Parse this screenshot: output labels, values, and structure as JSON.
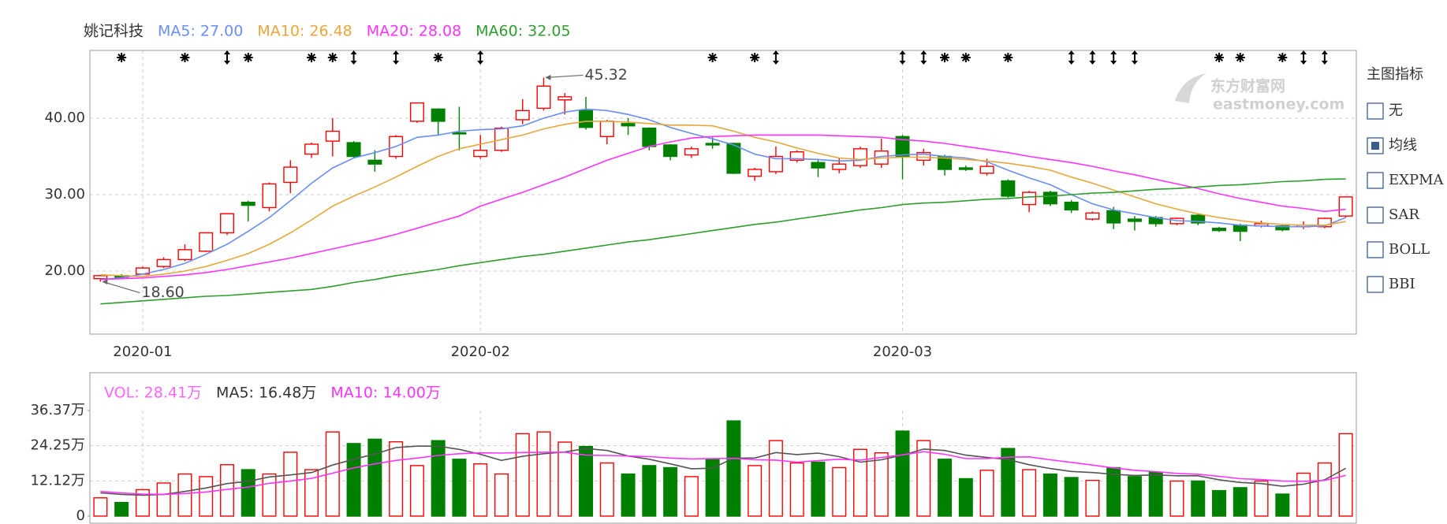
{
  "chart_data": [
    {
      "type": "candlestick",
      "title": "姚记科技",
      "categories": [
        null,
        null,
        "2020-01",
        null,
        null,
        null,
        null,
        null,
        null,
        null,
        null,
        null,
        null,
        null,
        null,
        null,
        null,
        null,
        "2020-02",
        null,
        null,
        null,
        null,
        null,
        null,
        null,
        null,
        null,
        null,
        null,
        null,
        null,
        null,
        null,
        null,
        null,
        null,
        null,
        "2020-03",
        null,
        null,
        null,
        null,
        null,
        null,
        null,
        null,
        null,
        null,
        null,
        null,
        null,
        null,
        null,
        null,
        null,
        null,
        null,
        null,
        null
      ],
      "open": [
        19.0,
        19.4,
        19.6,
        20.6,
        21.5,
        22.6,
        25.0,
        29.0,
        28.3,
        31.6,
        35.3,
        37.0,
        36.8,
        34.5,
        35.0,
        39.6,
        41.2,
        38.1,
        35.0,
        35.8,
        39.8,
        41.3,
        42.4,
        41.0,
        37.6,
        39.3,
        38.7,
        36.5,
        35.2,
        36.7,
        36.7,
        32.4,
        33.0,
        34.5,
        34.2,
        33.3,
        33.8,
        34.0,
        37.6,
        34.5,
        35.0,
        33.5,
        32.8,
        31.8,
        28.7,
        30.3,
        29.0,
        26.8,
        27.9,
        26.8,
        27.0,
        26.2,
        27.3,
        25.6,
        26.0,
        25.9,
        25.9,
        25.8,
        25.8,
        27.2
      ],
      "high": [
        19.5,
        19.6,
        20.6,
        21.8,
        23.5,
        25.1,
        27.6,
        29.2,
        31.6,
        34.5,
        36.8,
        40.0,
        37.0,
        35.8,
        37.8,
        42.0,
        41.3,
        41.5,
        37.8,
        38.9,
        42.5,
        45.32,
        43.3,
        42.8,
        39.8,
        40.0,
        38.8,
        36.6,
        36.3,
        37.5,
        36.8,
        33.5,
        36.3,
        35.8,
        34.5,
        34.8,
        36.3,
        37.3,
        37.8,
        36.0,
        35.2,
        33.8,
        34.7,
        32.0,
        30.5,
        30.5,
        29.3,
        27.8,
        28.4,
        27.2,
        27.2,
        27.0,
        27.5,
        25.8,
        26.2,
        26.6,
        26.0,
        26.5,
        27.0,
        29.8
      ],
      "low": [
        18.6,
        19.1,
        19.5,
        20.4,
        21.3,
        22.5,
        24.7,
        26.5,
        27.8,
        30.2,
        34.8,
        35.0,
        34.8,
        33.0,
        34.7,
        39.4,
        37.7,
        35.8,
        34.7,
        35.6,
        39.2,
        41.0,
        40.5,
        38.5,
        36.6,
        37.8,
        35.8,
        34.5,
        34.8,
        36.0,
        32.7,
        31.8,
        32.7,
        34.2,
        32.3,
        32.8,
        33.5,
        33.5,
        32.0,
        33.8,
        32.5,
        33.1,
        32.5,
        29.6,
        27.7,
        28.5,
        27.6,
        26.6,
        25.5,
        25.3,
        25.8,
        26.0,
        26.0,
        25.1,
        23.9,
        25.7,
        25.2,
        25.5,
        25.6,
        27.0
      ],
      "close": [
        19.4,
        19.2,
        20.4,
        21.5,
        22.8,
        25.0,
        27.5,
        28.6,
        31.4,
        33.6,
        36.6,
        38.3,
        35.0,
        34.0,
        37.6,
        42.0,
        39.6,
        38.0,
        35.8,
        38.7,
        41.0,
        44.2,
        42.8,
        38.8,
        39.6,
        39.0,
        36.3,
        35.0,
        36.0,
        36.5,
        32.8,
        33.3,
        35.0,
        35.6,
        33.5,
        34.0,
        36.0,
        35.7,
        35.0,
        35.5,
        33.3,
        33.3,
        33.7,
        29.8,
        30.3,
        28.8,
        28.0,
        27.6,
        26.3,
        26.5,
        26.2,
        26.9,
        26.3,
        25.3,
        25.2,
        26.2,
        25.4,
        26.0,
        26.9,
        29.7
      ],
      "up_color": "#ff0000",
      "down_color": "#008000",
      "ylim": [
        11.75,
        48.87
      ],
      "yticks": [
        {
          "value": 20,
          "label": "20.00"
        },
        {
          "value": 30,
          "label": "30.00"
        },
        {
          "value": 40,
          "label": "40.00"
        }
      ],
      "grid": true,
      "series": [
        {
          "label": "MA5: 27.00",
          "color": "#6a8ef5",
          "values": [
            18.9,
            19.1,
            19.6,
            20.2,
            21.0,
            22.2,
            23.5,
            25.2,
            27.0,
            29.2,
            31.5,
            33.5,
            34.8,
            35.5,
            36.3,
            37.5,
            37.8,
            38.3,
            38.5,
            38.6,
            39.0,
            40.0,
            40.8,
            41.2,
            41.0,
            40.5,
            39.8,
            38.8,
            38.0,
            37.3,
            36.5,
            35.3,
            34.7,
            34.7,
            34.6,
            34.4,
            34.5,
            35.0,
            35.2,
            35.3,
            35.0,
            34.8,
            34.3,
            33.2,
            32.2,
            31.3,
            30.0,
            28.8,
            28.0,
            27.5,
            27.0,
            26.6,
            26.5,
            26.3,
            26.0,
            25.9,
            25.8,
            25.8,
            25.9,
            27.0
          ]
        },
        {
          "label": "MA10: 26.48",
          "color": "#e8a73a",
          "values": [
            19.5,
            19.4,
            19.3,
            19.6,
            20.0,
            20.6,
            21.4,
            22.3,
            23.5,
            25.0,
            26.7,
            28.5,
            29.8,
            31.0,
            32.3,
            33.7,
            35.0,
            36.0,
            36.6,
            37.2,
            37.8,
            38.6,
            39.2,
            39.6,
            39.6,
            39.5,
            39.3,
            39.1,
            39.1,
            39.0,
            38.3,
            37.5,
            36.9,
            36.1,
            35.4,
            34.8,
            34.6,
            34.8,
            34.9,
            34.9,
            34.8,
            34.6,
            34.4,
            34.1,
            33.7,
            33.2,
            32.3,
            31.5,
            30.6,
            29.7,
            28.8,
            28.1,
            27.5,
            27.0,
            26.6,
            26.3,
            26.1,
            26.0,
            26.0,
            26.48
          ]
        },
        {
          "label": "MA20: 28.08",
          "color": "#ff33ff",
          "values": [
            18.9,
            19.0,
            19.1,
            19.3,
            19.5,
            19.8,
            20.2,
            20.7,
            21.2,
            21.7,
            22.3,
            22.9,
            23.5,
            24.1,
            24.8,
            25.6,
            26.4,
            27.2,
            28.5,
            29.4,
            30.3,
            31.3,
            32.3,
            33.4,
            34.5,
            35.4,
            36.3,
            36.9,
            37.4,
            37.6,
            37.7,
            37.8,
            37.8,
            37.8,
            37.8,
            37.7,
            37.6,
            37.5,
            37.2,
            37.0,
            36.7,
            36.3,
            35.9,
            35.5,
            35.0,
            34.6,
            34.2,
            33.7,
            33.1,
            32.6,
            32.0,
            31.4,
            30.8,
            30.1,
            29.5,
            29.0,
            28.5,
            28.2,
            27.8,
            28.08
          ]
        },
        {
          "label": "MA60: 32.05",
          "color": "#2e9e2e",
          "values": [
            15.7,
            15.9,
            16.1,
            16.3,
            16.5,
            16.7,
            16.8,
            17.0,
            17.2,
            17.4,
            17.6,
            18.0,
            18.5,
            18.9,
            19.4,
            19.8,
            20.2,
            20.7,
            21.1,
            21.5,
            21.9,
            22.2,
            22.6,
            23.0,
            23.4,
            23.8,
            24.1,
            24.5,
            24.9,
            25.3,
            25.7,
            26.1,
            26.4,
            26.8,
            27.2,
            27.6,
            28.0,
            28.3,
            28.7,
            28.9,
            29.0,
            29.2,
            29.4,
            29.5,
            29.7,
            29.8,
            30.0,
            30.2,
            30.3,
            30.5,
            30.7,
            30.8,
            31.0,
            31.2,
            31.3,
            31.5,
            31.7,
            31.8,
            32.0,
            32.05
          ]
        }
      ],
      "annotations": [
        {
          "value": 45.32,
          "label": "45.32",
          "of": "high"
        },
        {
          "value": 18.6,
          "label": "18.60",
          "of": "low"
        }
      ],
      "events": [
        {
          "index": 1,
          "symbol": "star"
        },
        {
          "index": 4,
          "symbol": "star"
        },
        {
          "index": 6,
          "symbol": "arrow"
        },
        {
          "index": 7,
          "symbol": "star"
        },
        {
          "index": 10,
          "symbol": "star"
        },
        {
          "index": 11,
          "symbol": "star"
        },
        {
          "index": 12,
          "symbol": "arrow"
        },
        {
          "index": 14,
          "symbol": "arrow"
        },
        {
          "index": 16,
          "symbol": "star"
        },
        {
          "index": 18,
          "symbol": "arrow"
        },
        {
          "index": 29,
          "symbol": "star"
        },
        {
          "index": 31,
          "symbol": "star"
        },
        {
          "index": 32,
          "symbol": "arrow"
        },
        {
          "index": 38,
          "symbol": "arrow"
        },
        {
          "index": 39,
          "symbol": "arrow"
        },
        {
          "index": 40,
          "symbol": "star"
        },
        {
          "index": 41,
          "symbol": "star"
        },
        {
          "index": 43,
          "symbol": "star"
        },
        {
          "index": 46,
          "symbol": "arrow"
        },
        {
          "index": 47,
          "symbol": "arrow"
        },
        {
          "index": 48,
          "symbol": "arrow"
        },
        {
          "index": 49,
          "symbol": "arrow"
        },
        {
          "index": 53,
          "symbol": "star"
        },
        {
          "index": 54,
          "symbol": "star"
        },
        {
          "index": 56,
          "symbol": "star"
        },
        {
          "index": 57,
          "symbol": "arrow"
        },
        {
          "index": 58,
          "symbol": "arrow"
        }
      ]
    },
    {
      "type": "volume",
      "label": "VOL: 28.41万",
      "color": "#ff66ff",
      "values": [
        6.3,
        4.7,
        9.1,
        11.4,
        14.5,
        13.6,
        17.7,
        16.0,
        14.5,
        22.0,
        16.0,
        29.0,
        25.0,
        26.5,
        25.6,
        17.4,
        26.0,
        19.6,
        18.0,
        14.5,
        28.4,
        29.0,
        25.5,
        24.0,
        18.3,
        14.5,
        17.4,
        16.7,
        13.6,
        19.6,
        32.8,
        17.4,
        26.0,
        18.3,
        18.6,
        16.7,
        23.0,
        21.8,
        29.3,
        26.0,
        19.6,
        12.9,
        15.8,
        23.3,
        16.0,
        14.5,
        13.3,
        12.3,
        16.7,
        13.6,
        15.1,
        12.1,
        12.1,
        8.8,
        9.8,
        12.1,
        7.6,
        14.8,
        18.3,
        28.41
      ],
      "ylim": [
        0,
        36.37
      ],
      "yticks": [
        0,
        {
          "value": 12.12,
          "label": "12.12万"
        },
        {
          "value": 24.25,
          "label": "24.25万"
        },
        {
          "value": 36.37,
          "label": "36.37万"
        }
      ],
      "grid": true,
      "series": [
        {
          "label": "MA5: 16.48万",
          "color": "#555555",
          "values": [
            8.0,
            7.5,
            7.2,
            7.5,
            8.5,
            9.7,
            11.2,
            12.0,
            13.5,
            14.2,
            15.0,
            17.6,
            19.6,
            21.4,
            23.6,
            24.1,
            24.1,
            23.0,
            21.3,
            19.2,
            20.6,
            21.5,
            22.1,
            23.3,
            22.6,
            20.7,
            19.6,
            18.0,
            16.3,
            16.5,
            20.0,
            20.0,
            21.9,
            21.2,
            21.7,
            20.5,
            18.6,
            19.4,
            21.0,
            23.1,
            22.6,
            21.0,
            20.2,
            19.5,
            17.7,
            16.4,
            15.4,
            15.0,
            14.4,
            14.0,
            14.2,
            13.9,
            13.9,
            12.5,
            11.6,
            11.2,
            10.3,
            11.0,
            12.5,
            16.48
          ]
        },
        {
          "label": "MA10: 14.00万",
          "color": "#ff33ff",
          "values": [
            8.5,
            8.0,
            7.6,
            7.5,
            7.8,
            8.3,
            9.2,
            10.0,
            11.3,
            12.1,
            13.0,
            14.8,
            16.6,
            18.0,
            19.2,
            20.0,
            20.9,
            21.5,
            21.8,
            21.7,
            21.9,
            22.0,
            22.0,
            21.0,
            20.9,
            20.7,
            20.5,
            20.0,
            19.7,
            19.8,
            19.9,
            19.4,
            19.3,
            18.6,
            19.1,
            19.6,
            19.3,
            20.2,
            21.1,
            22.2,
            21.3,
            19.8,
            19.8,
            20.3,
            20.4,
            19.4,
            18.5,
            17.6,
            16.6,
            15.8,
            15.3,
            14.7,
            14.4,
            13.7,
            12.9,
            12.6,
            12.1,
            12.0,
            12.3,
            14.0
          ]
        }
      ]
    }
  ],
  "indicator_panel": {
    "title": "主图指标",
    "options": [
      {
        "label": "无",
        "checked": false
      },
      {
        "label": "均线",
        "checked": true
      },
      {
        "label": "EXPMA",
        "checked": false
      },
      {
        "label": "SAR",
        "checked": false
      },
      {
        "label": "BOLL",
        "checked": false
      },
      {
        "label": "BBI",
        "checked": false
      }
    ]
  },
  "watermark": {
    "brand": "东方财富网",
    "site": "eastmoney.com"
  }
}
